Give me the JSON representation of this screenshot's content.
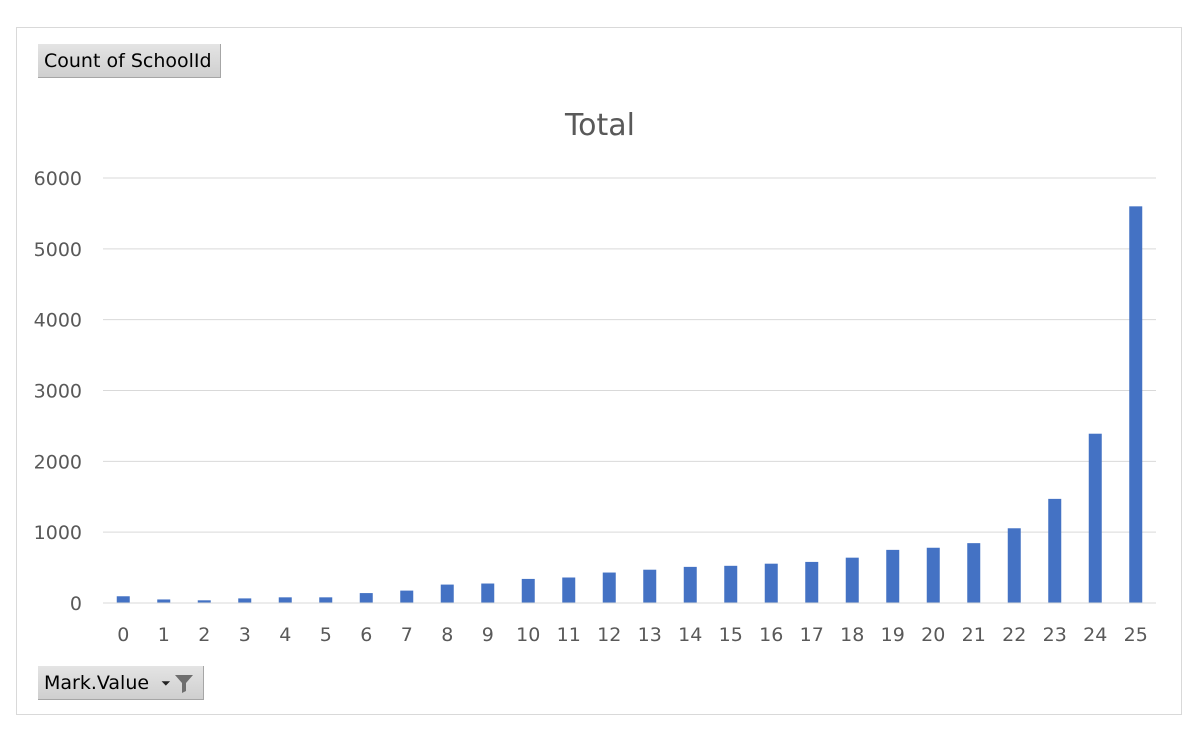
{
  "pivot": {
    "value_field": "Count of SchoolId",
    "axis_field": "Mark.Value",
    "axis_field_dropdown": "dropdown-arrow",
    "axis_field_filter": "filter-icon"
  },
  "colors": {
    "bar": "#4472c4",
    "grid": "#d9d9d9",
    "text": "#595959"
  },
  "chart_data": {
    "type": "bar",
    "title": "Total",
    "xlabel": "",
    "ylabel": "",
    "categories": [
      "0",
      "1",
      "2",
      "3",
      "4",
      "5",
      "6",
      "7",
      "8",
      "9",
      "10",
      "11",
      "12",
      "13",
      "14",
      "15",
      "16",
      "17",
      "18",
      "19",
      "20",
      "21",
      "22",
      "23",
      "24",
      "25"
    ],
    "series": [
      {
        "values": [
          95,
          50,
          38,
          65,
          80,
          80,
          140,
          175,
          260,
          275,
          340,
          360,
          430,
          470,
          510,
          525,
          555,
          580,
          640,
          750,
          780,
          845,
          1055,
          1470,
          2390,
          5600
        ]
      }
    ],
    "ylim": [
      0,
      6000
    ],
    "yticks": [
      0,
      1000,
      2000,
      3000,
      4000,
      5000,
      6000
    ],
    "grid": true,
    "legend": "none"
  }
}
